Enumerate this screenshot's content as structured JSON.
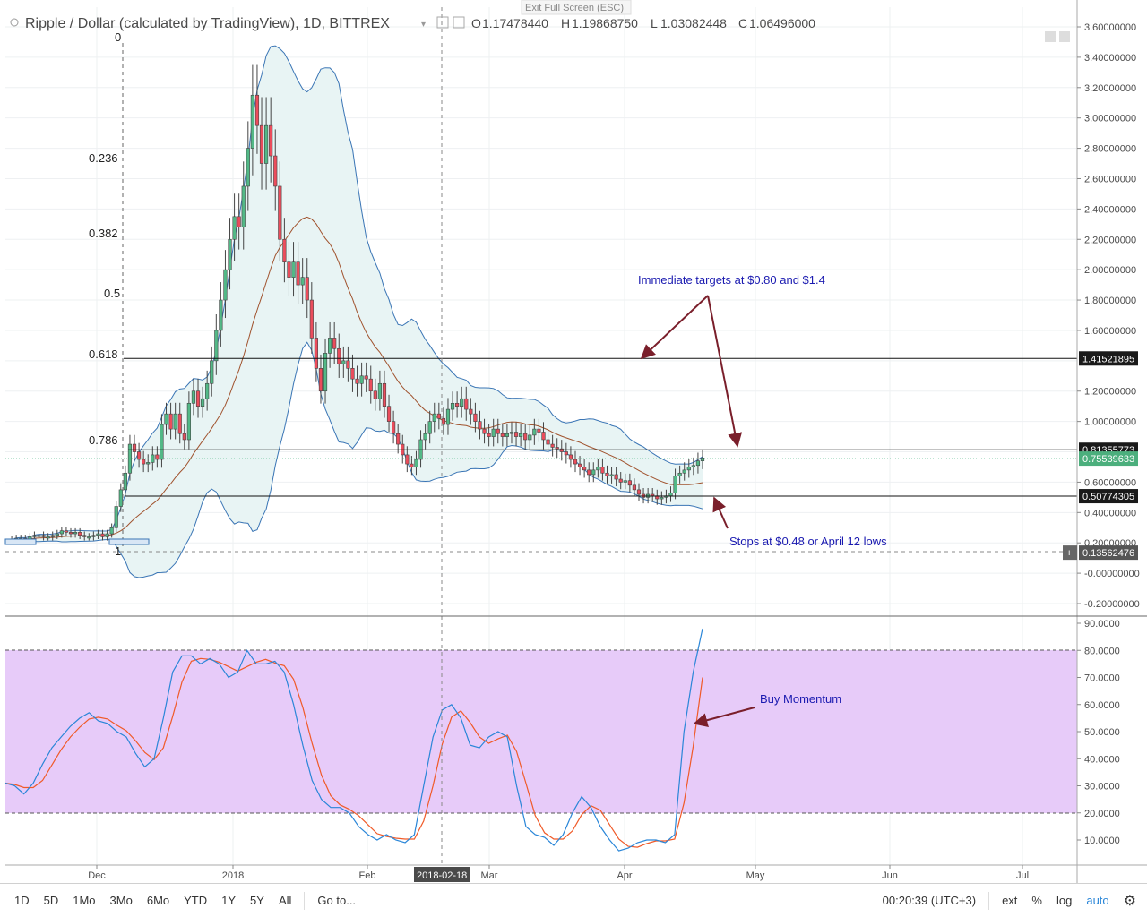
{
  "header": {
    "title": "Ripple / Dollar (calculated by TradingView), 1D, BITTREX",
    "exit_fullscreen": "Exit Full Screen (ESC)",
    "ohlc": {
      "o_label": "O",
      "o_value": "1.17478440",
      "h_label": "H",
      "h_value": "1.19868750",
      "l_label": "L",
      "l_value": "1.03082448",
      "c_label": "C",
      "c_value": "1.06496000"
    }
  },
  "price_axis": {
    "ticks": [
      "3.60000000",
      "3.40000000",
      "3.20000000",
      "3.00000000",
      "2.80000000",
      "2.60000000",
      "2.40000000",
      "2.20000000",
      "2.00000000",
      "1.80000000",
      "1.60000000",
      "1.20000000",
      "1.00000000",
      "0.60000000",
      "0.40000000",
      "0.20000000",
      "-0.00000000",
      "-0.20000000"
    ],
    "tags": [
      {
        "text": "1.41521895",
        "color": "#1a1a1a"
      },
      {
        "text": "0.81355773",
        "color": "#1a1a1a"
      },
      {
        "text": "0.75539633",
        "color": "#4caf7d"
      },
      {
        "text": "0.50774305",
        "color": "#1a1a1a"
      },
      {
        "text": "0.13562476",
        "color": "#555555"
      }
    ],
    "plus_sign": "+"
  },
  "fib_levels": [
    {
      "label": "0"
    },
    {
      "label": "0.236"
    },
    {
      "label": "0.382"
    },
    {
      "label": "0.5"
    },
    {
      "label": "0.618"
    },
    {
      "label": "0.786"
    },
    {
      "label": "1"
    }
  ],
  "annotations": {
    "targets": "Immediate targets at $0.80 and $1.4",
    "stops": "Stops at $0.48 or April 12 lows",
    "momentum": "Buy Momentum"
  },
  "osc_axis": {
    "ticks": [
      "90.0000",
      "80.0000",
      "70.0000",
      "60.0000",
      "50.0000",
      "40.0000",
      "30.0000",
      "20.0000",
      "10.0000"
    ]
  },
  "time_axis": {
    "labels": [
      "Dec",
      "2018",
      "Feb",
      "Mar",
      "Apr",
      "May",
      "Jun",
      "Jul"
    ],
    "crosshair_date": "2018-02-18"
  },
  "toolbar": {
    "ranges": [
      "1D",
      "5D",
      "1Mo",
      "3Mo",
      "6Mo",
      "YTD",
      "1Y",
      "5Y",
      "All"
    ],
    "goto": "Go to...",
    "clock": "00:20:39 (UTC+3)",
    "ext": "ext",
    "percent": "%",
    "log": "log",
    "auto": "auto"
  },
  "colors": {
    "up": "#53b987",
    "down": "#eb4d5c",
    "band_fill": "#e8f4f4",
    "band_line": "#3a75b5",
    "basis_line": "#a0522d",
    "osc_fill": "#e7cbf9",
    "stoch_k": "#2a86d8",
    "stoch_d": "#f05a28",
    "arrow": "#7a1f2b",
    "annotation_text": "#1a1ab0",
    "tag_green": "#4caf7d"
  },
  "chart_data": {
    "type": "candlestick",
    "title": "Ripple / Dollar (calculated by TradingView), 1D, BITTREX",
    "price_ylim": [
      -0.2,
      3.6
    ],
    "stoch_ylim": [
      0,
      90
    ],
    "stoch_bands": [
      20,
      80
    ],
    "horizontal_levels": [
      1.41521895,
      0.81355773,
      0.50774305,
      0.13562476
    ],
    "last_price": 0.75539633,
    "price_path": [
      0.22,
      0.22,
      0.23,
      0.23,
      0.22,
      0.24,
      0.25,
      0.25,
      0.24,
      0.24,
      0.25,
      0.26,
      0.28,
      0.27,
      0.26,
      0.27,
      0.25,
      0.24,
      0.24,
      0.25,
      0.26,
      0.24,
      0.26,
      0.3,
      0.44,
      0.55,
      0.66,
      0.85,
      0.8,
      0.75,
      0.72,
      0.73,
      0.78,
      0.75,
      0.98,
      1.05,
      0.95,
      1.05,
      0.92,
      0.88,
      1.12,
      1.2,
      1.1,
      1.15,
      1.25,
      1.4,
      1.6,
      1.8,
      2.0,
      2.2,
      2.35,
      2.28,
      2.55,
      2.8,
      3.15,
      2.95,
      2.7,
      2.95,
      2.75,
      2.55,
      2.2,
      2.05,
      1.95,
      2.05,
      1.9,
      1.95,
      1.8,
      1.55,
      1.35,
      1.2,
      1.45,
      1.55,
      1.48,
      1.38,
      1.4,
      1.35,
      1.28,
      1.25,
      1.3,
      1.28,
      1.2,
      1.15,
      1.25,
      1.1,
      1.0,
      0.92,
      0.85,
      0.78,
      0.72,
      0.7,
      0.75,
      0.88,
      0.92,
      1.0,
      1.05,
      1.02,
      0.98,
      1.08,
      1.12,
      1.1,
      1.15,
      1.08,
      1.05,
      1.0,
      0.95,
      0.92,
      0.9,
      0.95,
      0.92,
      0.9,
      0.92,
      0.93,
      0.9,
      0.92,
      0.88,
      0.91,
      0.95,
      0.93,
      0.88,
      0.85,
      0.83,
      0.82,
      0.8,
      0.78,
      0.75,
      0.72,
      0.7,
      0.68,
      0.65,
      0.68,
      0.7,
      0.66,
      0.64,
      0.65,
      0.62,
      0.6,
      0.61,
      0.58,
      0.55,
      0.52,
      0.5,
      0.52,
      0.51,
      0.49,
      0.5,
      0.51,
      0.53,
      0.64,
      0.66,
      0.68,
      0.7,
      0.71,
      0.74,
      0.76
    ],
    "stoch_k": [
      31,
      30,
      27,
      31,
      38,
      44,
      48,
      52,
      55,
      57,
      54,
      53,
      50,
      48,
      42,
      37,
      40,
      55,
      72,
      78,
      78,
      75,
      77,
      75,
      70,
      72,
      80,
      75,
      75,
      76,
      72,
      60,
      45,
      32,
      25,
      22,
      22,
      20,
      15,
      12,
      10,
      12,
      10,
      9,
      12,
      30,
      48,
      58,
      60,
      55,
      45,
      44,
      48,
      50,
      48,
      30,
      15,
      12,
      11,
      8,
      12,
      20,
      26,
      22,
      15,
      10,
      6,
      7,
      9,
      10,
      10,
      9,
      12,
      50,
      72,
      88
    ]
  }
}
